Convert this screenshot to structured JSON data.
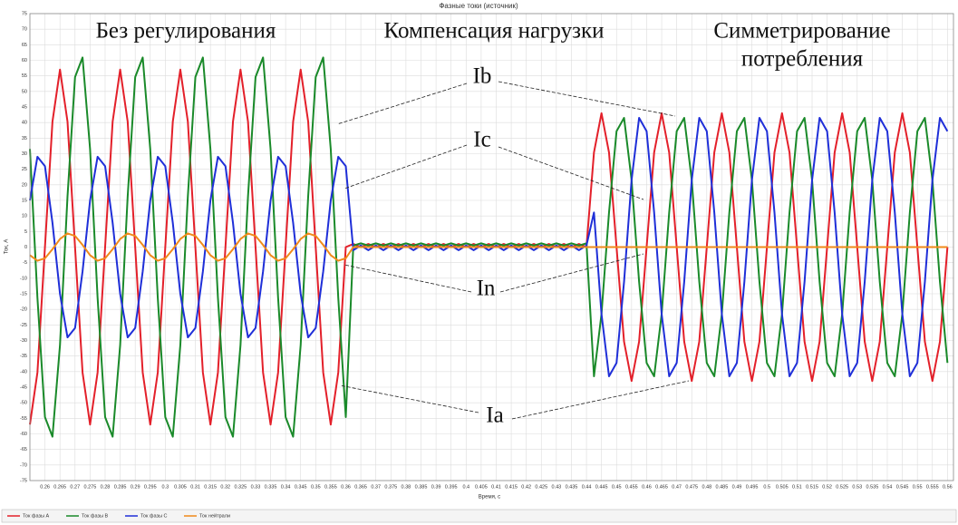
{
  "chart_data": {
    "type": "line",
    "title": "Фазные токи (источник)",
    "x_label": "Время, с",
    "y_label": "Ток, А",
    "grid": true,
    "legend": "bottom-left",
    "xlim": [
      0.255,
      0.562
    ],
    "ylim": [
      -75,
      75
    ],
    "xticks": [
      0.26,
      0.265,
      0.27,
      0.275,
      0.28,
      0.285,
      0.29,
      0.295,
      0.3,
      0.305,
      0.31,
      0.315,
      0.32,
      0.325,
      0.33,
      0.335,
      0.34,
      0.345,
      0.35,
      0.355,
      0.36,
      0.365,
      0.37,
      0.375,
      0.38,
      0.385,
      0.39,
      0.395,
      0.4,
      0.405,
      0.41,
      0.415,
      0.42,
      0.425,
      0.43,
      0.435,
      0.44,
      0.445,
      0.45,
      0.455,
      0.46,
      0.465,
      0.47,
      0.475,
      0.48,
      0.485,
      0.49,
      0.495,
      0.5,
      0.505,
      0.51,
      0.515,
      0.52,
      0.525,
      0.53,
      0.535,
      0.54,
      0.545,
      0.55,
      0.555,
      0.56
    ],
    "yticks": [
      -75,
      -70,
      -65,
      -60,
      -55,
      -50,
      -45,
      -40,
      -35,
      -30,
      -25,
      -20,
      -15,
      -10,
      -5,
      0,
      5,
      10,
      15,
      20,
      25,
      30,
      35,
      40,
      45,
      50,
      55,
      60,
      65,
      70,
      75
    ],
    "annotations": [
      "Без регулирования",
      "Компенсация нагрузки",
      "Симметрирование",
      "потребления",
      "Ib",
      "Ic",
      "In",
      "Ia"
    ],
    "x": [
      0.255,
      0.2575,
      0.26,
      0.2625,
      0.265,
      0.2675,
      0.27,
      0.2725,
      0.275,
      0.2775,
      0.28,
      0.2825,
      0.285,
      0.2875,
      0.29,
      0.2925,
      0.295,
      0.2975,
      0.3,
      0.3025,
      0.305,
      0.3075,
      0.31,
      0.3125,
      0.315,
      0.3175,
      0.32,
      0.3225,
      0.325,
      0.3275,
      0.33,
      0.3325,
      0.335,
      0.3375,
      0.34,
      0.3425,
      0.345,
      0.3475,
      0.35,
      0.3525,
      0.355,
      0.3575,
      0.36,
      0.3625,
      0.365,
      0.3675,
      0.37,
      0.3725,
      0.375,
      0.3775,
      0.38,
      0.3825,
      0.385,
      0.3875,
      0.39,
      0.3925,
      0.395,
      0.3975,
      0.4,
      0.4025,
      0.405,
      0.4075,
      0.41,
      0.4125,
      0.415,
      0.4175,
      0.42,
      0.4225,
      0.425,
      0.4275,
      0.43,
      0.4325,
      0.435,
      0.4375,
      0.44,
      0.4425,
      0.445,
      0.4475,
      0.45,
      0.4525,
      0.455,
      0.4575,
      0.46,
      0.4625,
      0.465,
      0.4675,
      0.47,
      0.4725,
      0.475,
      0.4775,
      0.48,
      0.4825,
      0.485,
      0.4875,
      0.49,
      0.4925,
      0.495,
      0.4975,
      0.5,
      0.5025,
      0.505,
      0.5075,
      0.51,
      0.5125,
      0.515,
      0.5175,
      0.52,
      0.5225,
      0.525,
      0.5275,
      0.53,
      0.5325,
      0.535,
      0.5375,
      0.54,
      0.5425,
      0.545,
      0.5475,
      0.55,
      0.5525,
      0.555,
      0.5575,
      0.56
    ],
    "series": [
      {
        "name": "Ток фазы A",
        "color": "#e3202a",
        "values": [
          -57,
          -40.3,
          0,
          40.3,
          57,
          40.3,
          0,
          -40.3,
          -57,
          -40.3,
          0,
          40.3,
          57,
          40.3,
          0,
          -40.3,
          -57,
          -40.3,
          0,
          40.3,
          57,
          40.3,
          0,
          -40.3,
          -57,
          -40.3,
          0,
          40.3,
          57,
          40.3,
          0,
          -40.3,
          -57,
          -40.3,
          0,
          40.3,
          57,
          40.3,
          0,
          -40.3,
          -57,
          -40.3,
          0,
          1,
          0,
          1,
          0,
          1,
          0,
          1,
          0,
          1,
          0,
          1,
          0,
          1,
          0,
          1,
          0,
          1,
          0,
          1,
          0,
          1,
          0,
          1,
          0,
          1,
          0,
          1,
          0,
          1,
          0,
          1,
          0,
          30.4,
          43,
          30.4,
          0,
          -30.4,
          -43,
          -30.4,
          0,
          30.4,
          43,
          30.4,
          0,
          -30.4,
          -43,
          -30.4,
          0,
          30.4,
          43,
          30.4,
          0,
          -30.4,
          -43,
          -30.4,
          0,
          30.4,
          43,
          30.4,
          0,
          -30.4,
          -43,
          -30.4,
          0,
          30.4,
          43,
          30.4,
          0,
          -30.4,
          -43,
          -30.4,
          0,
          30.4,
          43,
          30.4,
          0,
          -30.4,
          -43,
          -30.4,
          0
        ]
      },
      {
        "name": "Ток фазы B",
        "color": "#1a8a2a",
        "values": [
          31.5,
          -16.3,
          -54.6,
          -60.9,
          -31.5,
          16.3,
          54.6,
          60.9,
          31.5,
          -16.3,
          -54.6,
          -60.9,
          -31.5,
          16.3,
          54.6,
          60.9,
          31.5,
          -16.3,
          -54.6,
          -60.9,
          -31.5,
          16.3,
          54.6,
          60.9,
          31.5,
          -16.3,
          -54.6,
          -60.9,
          -31.5,
          16.3,
          54.6,
          60.9,
          31.5,
          -16.3,
          -54.6,
          -60.9,
          -31.5,
          16.3,
          54.6,
          60.9,
          31.5,
          -16.3,
          -54.6,
          0.5,
          1.2,
          0.5,
          1.2,
          0.5,
          1.2,
          0.5,
          1.2,
          0.5,
          1.2,
          0.5,
          1.2,
          0.5,
          1.2,
          0.5,
          1.2,
          0.5,
          1.2,
          0.5,
          1.2,
          0.5,
          1.2,
          0.5,
          1.2,
          0.5,
          1.2,
          0.5,
          1.2,
          0.5,
          1.2,
          0.5,
          1.2,
          -41.5,
          -21.5,
          11.1,
          37.2,
          41.5,
          21.5,
          -11.1,
          -37.2,
          -41.5,
          -21.5,
          11.1,
          37.2,
          41.5,
          21.5,
          -11.1,
          -37.2,
          -41.5,
          -21.5,
          11.1,
          37.2,
          41.5,
          21.5,
          -11.1,
          -37.2,
          -41.5,
          -21.5,
          11.1,
          37.2,
          41.5,
          21.5,
          -11.1,
          -37.2,
          -41.5,
          -21.5,
          11.1,
          37.2,
          41.5,
          21.5,
          -11.1,
          -37.2,
          -41.5,
          -21.5,
          11.1,
          37.2,
          41.5,
          21.5,
          -11.1,
          -37.2
        ]
      },
      {
        "name": "Ток фазы C",
        "color": "#1f2fd8",
        "values": [
          15,
          29,
          26,
          7.8,
          -15,
          -29,
          -26,
          -7.8,
          15,
          29,
          26,
          7.8,
          -15,
          -29,
          -26,
          -7.8,
          15,
          29,
          26,
          7.8,
          -15,
          -29,
          -26,
          -7.8,
          15,
          29,
          26,
          7.8,
          -15,
          -29,
          -26,
          -7.8,
          15,
          29,
          26,
          7.8,
          -15,
          -29,
          -26,
          -7.8,
          15,
          29,
          26,
          -1,
          0.5,
          -1,
          0.5,
          -1,
          0.5,
          -1,
          0.5,
          -1,
          0.5,
          -1,
          0.5,
          -1,
          0.5,
          -1,
          0.5,
          -1,
          0.5,
          -1,
          0.5,
          -1,
          0.5,
          -1,
          0.5,
          -1,
          0.5,
          -1,
          0.5,
          -1,
          0.5,
          -1,
          0.5,
          11.1,
          -21.5,
          -41.5,
          -37.2,
          -11.1,
          21.5,
          41.5,
          37.2,
          11.1,
          -21.5,
          -41.5,
          -37.2,
          -11.1,
          21.5,
          41.5,
          37.2,
          11.1,
          -21.5,
          -41.5,
          -37.2,
          -11.1,
          21.5,
          41.5,
          37.2,
          11.1,
          -21.5,
          -41.5,
          -37.2,
          -11.1,
          21.5,
          41.5,
          37.2,
          11.1,
          -21.5,
          -41.5,
          -37.2,
          -11.1,
          21.5,
          41.5,
          37.2,
          11.1,
          -21.5,
          -41.5,
          -37.2,
          -11.1,
          21.5,
          41.5,
          37.2
        ]
      },
      {
        "name": "Ток нейтрали",
        "color": "#f08a1a",
        "values": [
          -2.6,
          -4.4,
          -3.6,
          -0.7,
          2.6,
          4.4,
          3.6,
          0.7,
          -2.6,
          -4.4,
          -3.6,
          -0.7,
          2.6,
          4.4,
          3.6,
          0.7,
          -2.6,
          -4.4,
          -3.6,
          -0.7,
          2.6,
          4.4,
          3.6,
          0.7,
          -2.6,
          -4.4,
          -3.6,
          -0.7,
          2.6,
          4.4,
          3.6,
          0.7,
          -2.6,
          -4.4,
          -3.6,
          -0.7,
          2.6,
          4.4,
          3.6,
          0.7,
          -2.6,
          -4.4,
          -3.6,
          0,
          0,
          0,
          0,
          0,
          0,
          0,
          0,
          0,
          0,
          0,
          0,
          0,
          0,
          0,
          0,
          0,
          0,
          0,
          0,
          0,
          0,
          0,
          0,
          0,
          0,
          0,
          0,
          0,
          0,
          0,
          0,
          0,
          0,
          0,
          0,
          0,
          0,
          0,
          0,
          0,
          0,
          0,
          0,
          0,
          0,
          0,
          0,
          0,
          0,
          0,
          0,
          0,
          0,
          0,
          0,
          0,
          0,
          0,
          0,
          0,
          0,
          0,
          0,
          0,
          0,
          0,
          0,
          0,
          0,
          0,
          0,
          0,
          0,
          0,
          0,
          0,
          0,
          0,
          0
        ]
      }
    ]
  }
}
